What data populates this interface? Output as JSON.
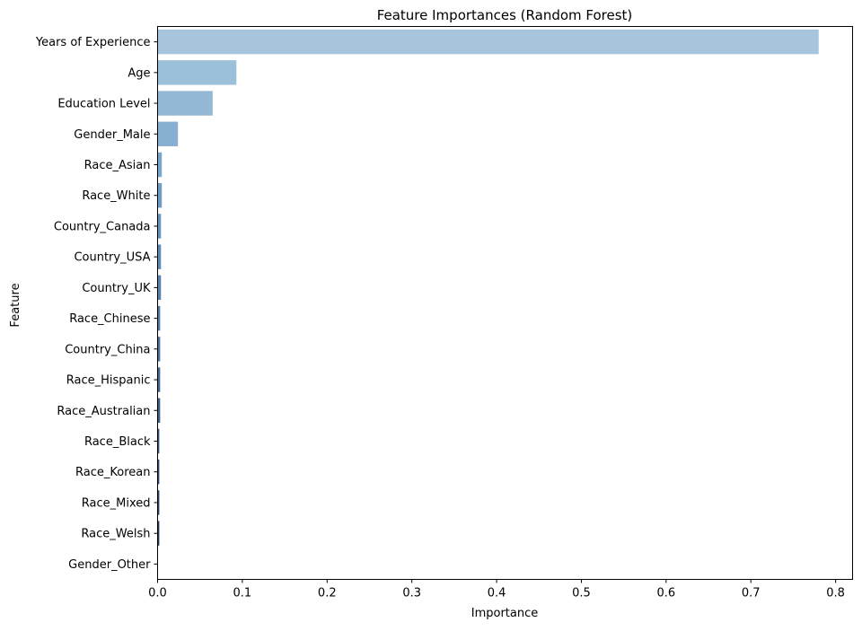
{
  "chart_data": {
    "type": "bar",
    "orientation": "horizontal",
    "title": "Feature Importances (Random Forest)",
    "xlabel": "Importance",
    "ylabel": "Feature",
    "xlim": [
      0,
      0.82
    ],
    "x_ticks": [
      "0.0",
      "0.1",
      "0.2",
      "0.3",
      "0.4",
      "0.5",
      "0.6",
      "0.7",
      "0.8"
    ],
    "grid": false,
    "legend": false,
    "categories": [
      "Years of Experience",
      "Age",
      "Education Level",
      "Gender_Male",
      "Race_Asian",
      "Race_White",
      "Country_Canada",
      "Country_USA",
      "Country_UK",
      "Race_Chinese",
      "Country_China",
      "Race_Hispanic",
      "Race_Australian",
      "Race_Black",
      "Race_Korean",
      "Race_Mixed",
      "Race_Welsh",
      "Gender_Other"
    ],
    "values": [
      0.78,
      0.093,
      0.065,
      0.024,
      0.005,
      0.005,
      0.004,
      0.004,
      0.004,
      0.003,
      0.003,
      0.003,
      0.003,
      0.002,
      0.002,
      0.002,
      0.002,
      0.0003
    ],
    "colors": [
      "#a6c4dc",
      "#9dc0da",
      "#94b7d5",
      "#87afd1",
      "#7ba6cb",
      "#6f9dc4",
      "#6594bd",
      "#5d8bb6",
      "#5682ad",
      "#4f79a3",
      "#48709a",
      "#42678f",
      "#3b5e85",
      "#35557a",
      "#2f4c6f",
      "#294265",
      "#24395a",
      "#1f3150"
    ]
  }
}
